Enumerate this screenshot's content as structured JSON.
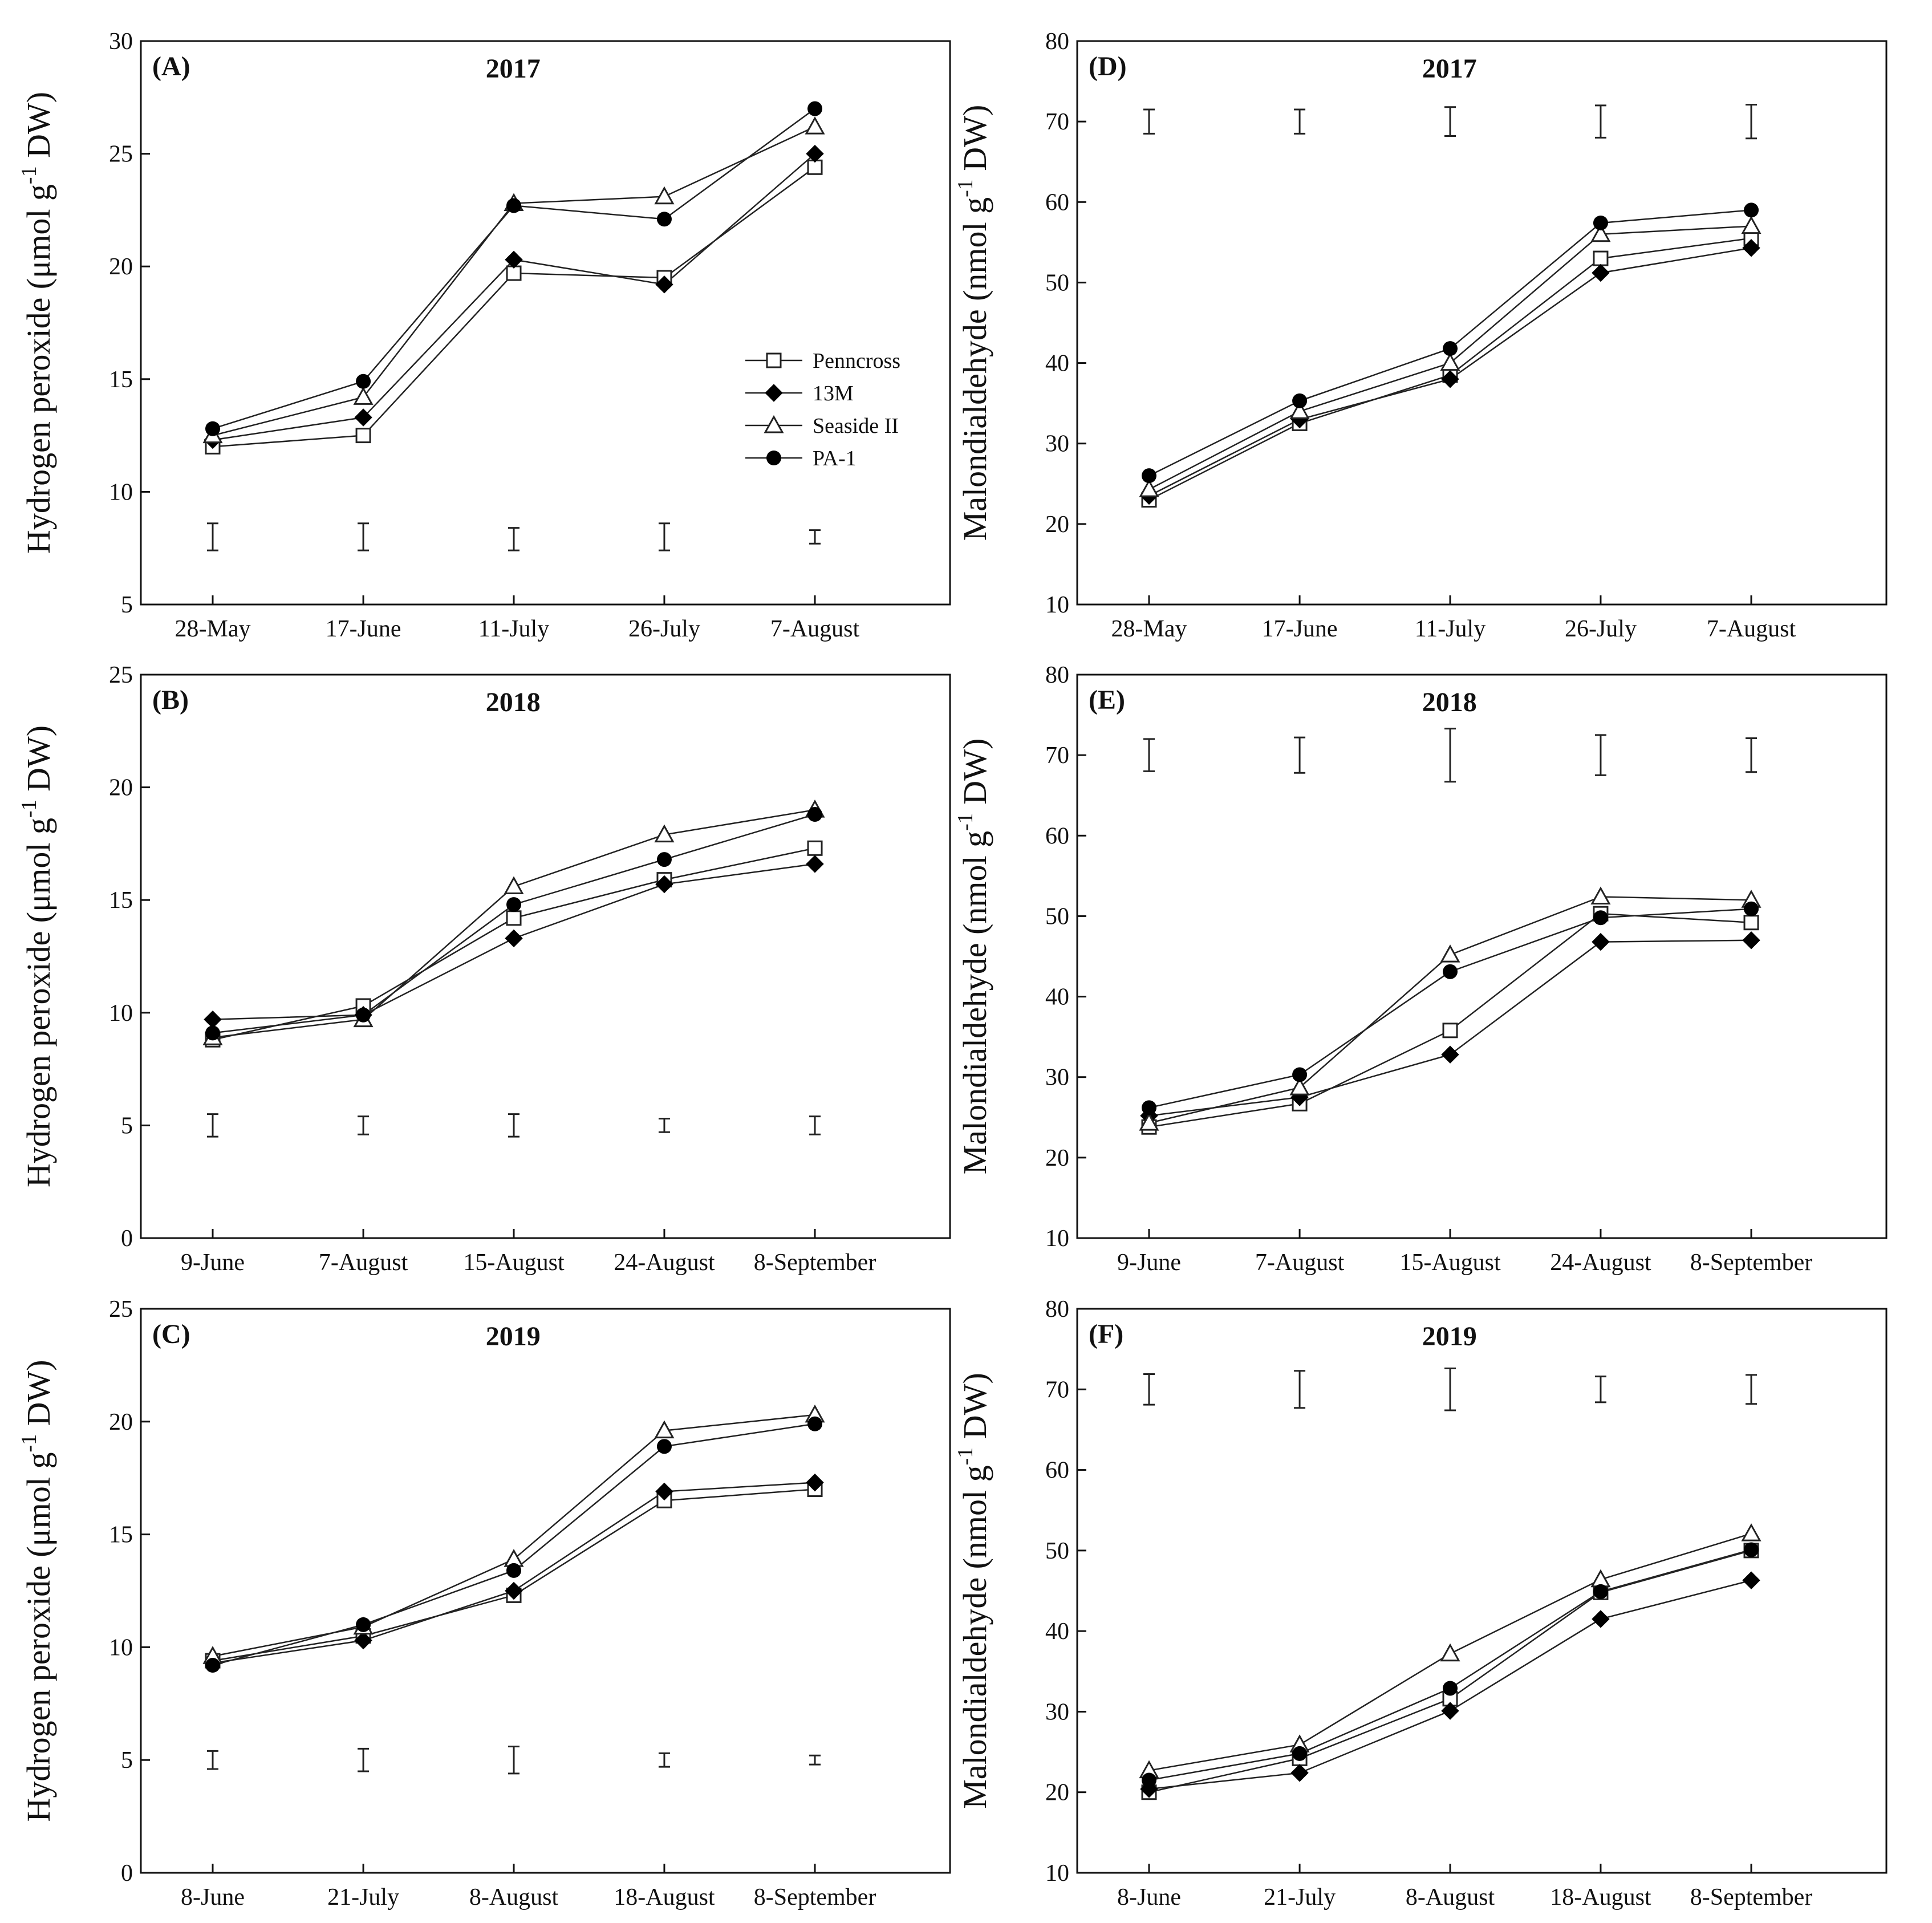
{
  "chart_data": [
    {
      "id": "A",
      "type": "line",
      "panel_label": "(A)",
      "title": "2017",
      "ylabel_main": "Hydrogen peroxide (μmol g",
      "ylabel_sup": "-1",
      "ylabel_end": " DW)",
      "ylim": [
        5,
        30
      ],
      "yticks": [
        5,
        10,
        15,
        20,
        25,
        30
      ],
      "categories": [
        "28-May",
        "17-June",
        "11-July",
        "26-July",
        "7-August"
      ],
      "series": [
        {
          "name": "Penncross",
          "marker": "square-open",
          "values": [
            12.0,
            12.5,
            19.7,
            19.5,
            24.4
          ]
        },
        {
          "name": "13M",
          "marker": "diamond-filled",
          "values": [
            12.3,
            13.3,
            20.3,
            19.2,
            25.0
          ]
        },
        {
          "name": "Seaside II",
          "marker": "triangle-open",
          "values": [
            12.5,
            14.2,
            22.8,
            23.1,
            26.2
          ]
        },
        {
          "name": "PA-1",
          "marker": "circle-filled",
          "values": [
            12.8,
            14.9,
            22.7,
            22.1,
            27.0
          ]
        }
      ],
      "error_bars": {
        "center": [
          8.0,
          8.0,
          7.9,
          8.0,
          8.0
        ],
        "half": [
          0.6,
          0.6,
          0.5,
          0.6,
          0.3
        ]
      },
      "legend": {
        "position": "middle-right"
      }
    },
    {
      "id": "B",
      "type": "line",
      "panel_label": "(B)",
      "title": "2018",
      "ylabel_main": "Hydrogen peroxide (μmol g",
      "ylabel_sup": "-1",
      "ylabel_end": " DW)",
      "ylim": [
        0,
        25
      ],
      "yticks": [
        0,
        5,
        10,
        15,
        20,
        25
      ],
      "categories": [
        "9-June",
        "7-August",
        "15-August",
        "24-August",
        "8-September"
      ],
      "series": [
        {
          "name": "Penncross",
          "marker": "square-open",
          "values": [
            8.8,
            10.3,
            14.2,
            15.9,
            17.3
          ]
        },
        {
          "name": "13M",
          "marker": "diamond-filled",
          "values": [
            9.7,
            9.9,
            13.3,
            15.7,
            16.6
          ]
        },
        {
          "name": "Seaside II",
          "marker": "triangle-open",
          "values": [
            8.9,
            9.7,
            15.6,
            17.9,
            19.0
          ]
        },
        {
          "name": "PA-1",
          "marker": "circle-filled",
          "values": [
            9.1,
            9.9,
            14.8,
            16.8,
            18.8
          ]
        }
      ],
      "error_bars": {
        "center": [
          5.0,
          5.0,
          5.0,
          5.0,
          5.0
        ],
        "half": [
          0.5,
          0.4,
          0.5,
          0.3,
          0.4
        ]
      }
    },
    {
      "id": "C",
      "type": "line",
      "panel_label": "(C)",
      "title": "2019",
      "ylabel_main": "Hydrogen peroxide (μmol g",
      "ylabel_sup": "-1",
      "ylabel_end": " DW)",
      "ylim": [
        0,
        25
      ],
      "yticks": [
        0,
        5,
        10,
        15,
        20,
        25
      ],
      "categories": [
        "8-June",
        "21-July",
        "8-August",
        "18-August",
        "8-September"
      ],
      "series": [
        {
          "name": "Penncross",
          "marker": "square-open",
          "values": [
            9.4,
            10.5,
            12.3,
            16.5,
            17.0
          ]
        },
        {
          "name": "13M",
          "marker": "diamond-filled",
          "values": [
            9.3,
            10.3,
            12.5,
            16.9,
            17.3
          ]
        },
        {
          "name": "Seaside II",
          "marker": "triangle-open",
          "values": [
            9.6,
            10.9,
            13.9,
            19.6,
            20.3
          ]
        },
        {
          "name": "PA-1",
          "marker": "circle-filled",
          "values": [
            9.2,
            11.0,
            13.4,
            18.9,
            19.9
          ]
        }
      ],
      "error_bars": {
        "center": [
          5.0,
          5.0,
          5.0,
          5.0,
          5.0
        ],
        "half": [
          0.4,
          0.5,
          0.6,
          0.3,
          0.2
        ]
      }
    },
    {
      "id": "D",
      "type": "line",
      "panel_label": "(D)",
      "title": "2017",
      "ylabel_main": "Malondialdehyde (nmol g",
      "ylabel_sup": "-1",
      "ylabel_end": " DW)",
      "ylim": [
        10,
        80
      ],
      "yticks": [
        10,
        20,
        30,
        40,
        50,
        60,
        70,
        80
      ],
      "categories": [
        "28-May",
        "17-June",
        "11-July",
        "26-July",
        "7-August"
      ],
      "series": [
        {
          "name": "Penncross",
          "marker": "square-open",
          "values": [
            23.0,
            32.5,
            38.5,
            53.0,
            55.5
          ]
        },
        {
          "name": "13M",
          "marker": "diamond-filled",
          "values": [
            23.5,
            33.0,
            38.0,
            51.2,
            54.3
          ]
        },
        {
          "name": "Seaside II",
          "marker": "triangle-open",
          "values": [
            24.3,
            34.0,
            40.0,
            56.0,
            57.0
          ]
        },
        {
          "name": "PA-1",
          "marker": "circle-filled",
          "values": [
            26.0,
            35.3,
            41.8,
            57.4,
            59.0
          ]
        }
      ],
      "error_bars": {
        "center": [
          70.0,
          70.0,
          70.0,
          70.0,
          70.0
        ],
        "half": [
          1.5,
          1.5,
          1.8,
          2.0,
          2.1
        ]
      }
    },
    {
      "id": "E",
      "type": "line",
      "panel_label": "(E)",
      "title": "2018",
      "ylabel_main": "Malondialdehyde (nmol g",
      "ylabel_sup": "-1",
      "ylabel_end": " DW)",
      "ylim": [
        10,
        80
      ],
      "yticks": [
        10,
        20,
        30,
        40,
        50,
        60,
        70,
        80
      ],
      "categories": [
        "9-June",
        "7-August",
        "15-August",
        "24-August",
        "8-September"
      ],
      "series": [
        {
          "name": "Penncross",
          "marker": "square-open",
          "values": [
            23.8,
            26.7,
            35.8,
            50.3,
            49.2
          ]
        },
        {
          "name": "13M",
          "marker": "diamond-filled",
          "values": [
            25.2,
            27.5,
            32.8,
            46.8,
            47.0
          ]
        },
        {
          "name": "Seaside II",
          "marker": "triangle-open",
          "values": [
            24.3,
            28.7,
            45.2,
            52.4,
            52.0
          ]
        },
        {
          "name": "PA-1",
          "marker": "circle-filled",
          "values": [
            26.2,
            30.3,
            43.1,
            49.8,
            50.9
          ]
        }
      ],
      "error_bars": {
        "center": [
          70.0,
          70.0,
          70.0,
          70.0,
          70.0
        ],
        "half": [
          2.0,
          2.2,
          3.3,
          2.5,
          2.1
        ]
      }
    },
    {
      "id": "F",
      "type": "line",
      "panel_label": "(F)",
      "title": "2019",
      "ylabel_main": "Malondialdehyde (nmol g",
      "ylabel_sup": "-1",
      "ylabel_end": " DW)",
      "ylim": [
        10,
        80
      ],
      "yticks": [
        10,
        20,
        30,
        40,
        50,
        60,
        70,
        80
      ],
      "categories": [
        "8-June",
        "21-July",
        "8-August",
        "18-August",
        "8-September"
      ],
      "series": [
        {
          "name": "Penncross",
          "marker": "square-open",
          "values": [
            20.0,
            24.2,
            31.6,
            44.8,
            50.0
          ]
        },
        {
          "name": "13M",
          "marker": "diamond-filled",
          "values": [
            20.4,
            22.4,
            30.1,
            41.5,
            46.3
          ]
        },
        {
          "name": "Seaside II",
          "marker": "triangle-open",
          "values": [
            22.7,
            25.9,
            37.2,
            46.4,
            52.1
          ]
        },
        {
          "name": "PA-1",
          "marker": "circle-filled",
          "values": [
            21.5,
            24.8,
            32.9,
            44.9,
            50.1
          ]
        }
      ],
      "error_bars": {
        "center": [
          70.0,
          70.0,
          70.0,
          70.0,
          70.0
        ],
        "half": [
          1.9,
          2.3,
          2.6,
          1.6,
          1.8
        ]
      }
    }
  ]
}
